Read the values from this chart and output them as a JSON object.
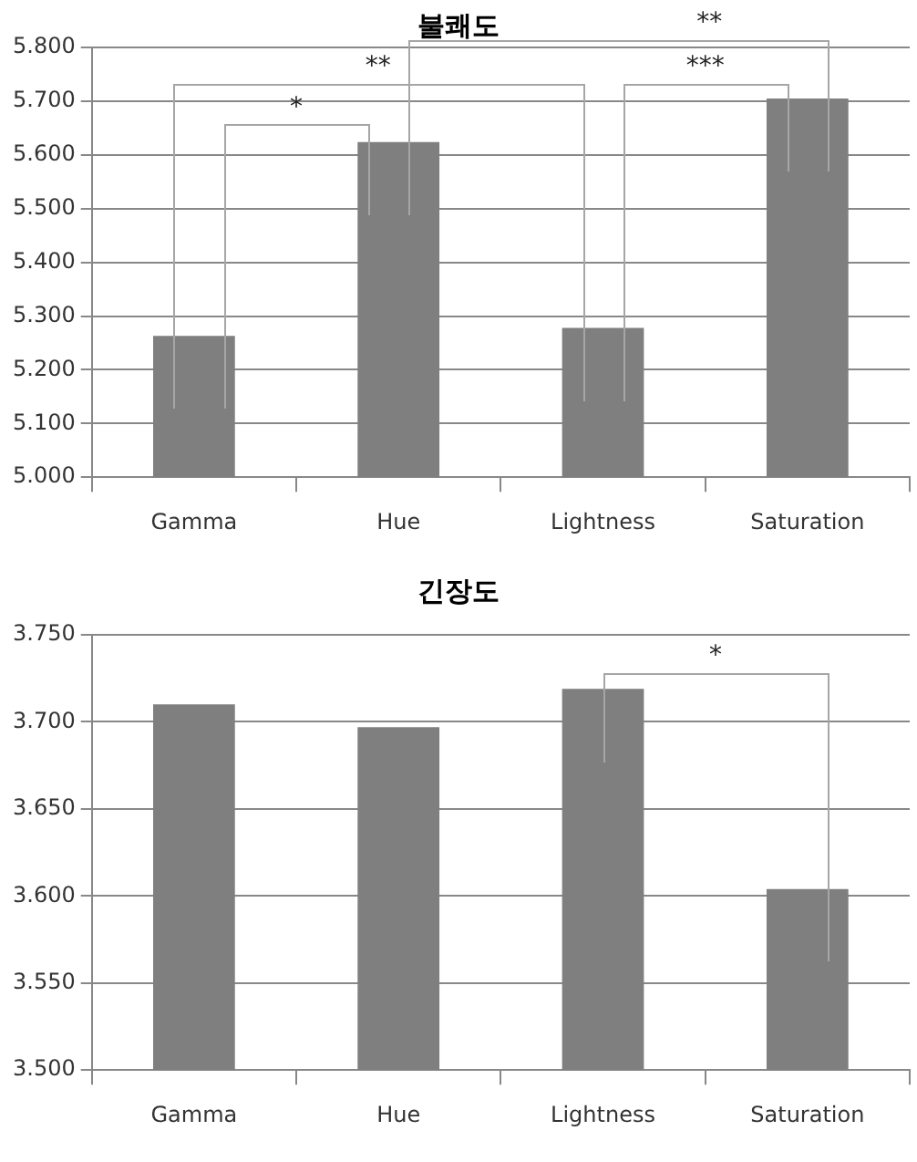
{
  "chart_data": [
    {
      "type": "bar",
      "title": "불쾌도",
      "categories": [
        "Gamma",
        "Hue",
        "Lightness",
        "Saturation"
      ],
      "values": [
        5.263,
        5.624,
        5.278,
        5.705
      ],
      "color": "#7f7f7f",
      "ylim": [
        5.0,
        5.8
      ],
      "yticks": [
        {
          "value": 5.0,
          "label": "5.000"
        },
        {
          "value": 5.1,
          "label": "5.100"
        },
        {
          "value": 5.2,
          "label": "5.200"
        },
        {
          "value": 5.3,
          "label": "5.300"
        },
        {
          "value": 5.4,
          "label": "5.400"
        },
        {
          "value": 5.5,
          "label": "5.500"
        },
        {
          "value": 5.6,
          "label": "5.600"
        },
        {
          "value": 5.7,
          "label": "5.700"
        },
        {
          "value": 5.8,
          "label": "5.800"
        }
      ],
      "grid": "y",
      "annotations": [
        "*",
        "**",
        "***",
        "**"
      ]
    },
    {
      "type": "bar",
      "title": "긴장도",
      "categories": [
        "Gamma",
        "Hue",
        "Lightness",
        "Saturation"
      ],
      "values": [
        3.71,
        3.697,
        3.719,
        3.604
      ],
      "color": "#7f7f7f",
      "ylim": [
        3.5,
        3.75
      ],
      "yticks": [
        {
          "value": 3.5,
          "label": "3.500"
        },
        {
          "value": 3.55,
          "label": "3.550"
        },
        {
          "value": 3.6,
          "label": "3.600"
        },
        {
          "value": 3.65,
          "label": "3.650"
        },
        {
          "value": 3.7,
          "label": "3.700"
        },
        {
          "value": 3.75,
          "label": "3.750"
        }
      ],
      "grid": "y",
      "annotations": [
        "*"
      ]
    }
  ]
}
